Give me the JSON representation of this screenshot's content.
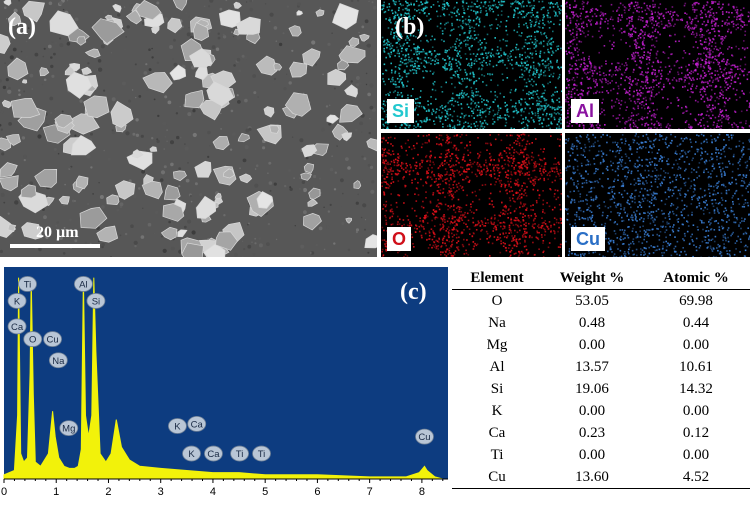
{
  "panels": {
    "a_label": "(a)",
    "b_label": "(b)",
    "c_label": "(c)",
    "scale_bar": "20 µm"
  },
  "maps": [
    {
      "element": "Si",
      "color": "#22c8cf"
    },
    {
      "element": "Al",
      "color": "#c21fcf"
    },
    {
      "element": "O",
      "color": "#e0101a"
    },
    {
      "element": "Cu",
      "color": "#3a7fd6"
    }
  ],
  "chart_data": {
    "type": "line",
    "title": "",
    "xlabel": "",
    "ylabel": "",
    "xlim": [
      0,
      8.5
    ],
    "x_ticks": [
      "0",
      "1",
      "2",
      "3",
      "4",
      "5",
      "6",
      "7",
      "8"
    ],
    "background": "#0d3c80",
    "line_color": "#f2f20a",
    "series": [
      {
        "x": [
          0.0,
          0.2,
          0.26,
          0.28,
          0.32,
          0.38,
          0.45,
          0.5,
          0.52,
          0.56,
          0.6,
          0.7,
          0.85,
          0.93,
          0.98,
          1.05,
          1.15,
          1.25,
          1.35,
          1.42,
          1.48,
          1.52,
          1.56,
          1.62,
          1.68,
          1.72,
          1.76,
          1.84,
          1.95,
          2.05,
          2.15,
          2.25,
          2.4,
          2.6,
          3.0,
          3.5,
          4.0,
          4.5,
          5.0,
          6.0,
          7.0,
          7.7,
          7.95,
          8.05,
          8.1,
          8.15,
          8.25,
          8.4
        ],
        "y": [
          2,
          4,
          30,
          95,
          12,
          8,
          10,
          50,
          95,
          40,
          8,
          6,
          12,
          32,
          20,
          10,
          6,
          5,
          5,
          6,
          14,
          95,
          30,
          20,
          30,
          95,
          60,
          12,
          8,
          12,
          28,
          15,
          9,
          6,
          5,
          4,
          3,
          3,
          2,
          2,
          1,
          1,
          3,
          6,
          4,
          3,
          1,
          0
        ]
      }
    ],
    "peak_labels": [
      {
        "text": "Ti",
        "x": 0.45,
        "y": 92
      },
      {
        "text": "K",
        "x": 0.25,
        "y": 84
      },
      {
        "text": "Ca",
        "x": 0.25,
        "y": 72
      },
      {
        "text": "O",
        "x": 0.55,
        "y": 66
      },
      {
        "text": "Cu",
        "x": 0.93,
        "y": 66
      },
      {
        "text": "Na",
        "x": 1.04,
        "y": 56
      },
      {
        "text": "Al",
        "x": 1.52,
        "y": 92
      },
      {
        "text": "Si",
        "x": 1.76,
        "y": 84
      },
      {
        "text": "Mg",
        "x": 1.24,
        "y": 24
      },
      {
        "text": "K",
        "x": 3.32,
        "y": 25
      },
      {
        "text": "Ca",
        "x": 3.69,
        "y": 26
      },
      {
        "text": "K",
        "x": 3.59,
        "y": 12
      },
      {
        "text": "Ca",
        "x": 4.01,
        "y": 12
      },
      {
        "text": "Ti",
        "x": 4.51,
        "y": 12
      },
      {
        "text": "Ti",
        "x": 4.93,
        "y": 12
      },
      {
        "text": "Cu",
        "x": 8.05,
        "y": 20
      }
    ]
  },
  "composition_table": {
    "headers": [
      "Element",
      "Weight %",
      "Atomic %"
    ],
    "rows": [
      [
        "O",
        "53.05",
        "69.98"
      ],
      [
        "Na",
        "0.48",
        "0.44"
      ],
      [
        "Mg",
        "0.00",
        "0.00"
      ],
      [
        "Al",
        "13.57",
        "10.61"
      ],
      [
        "Si",
        "19.06",
        "14.32"
      ],
      [
        "K",
        "0.00",
        "0.00"
      ],
      [
        "Ca",
        "0.23",
        "0.12"
      ],
      [
        "Ti",
        "0.00",
        "0.00"
      ],
      [
        "Cu",
        "13.60",
        "4.52"
      ]
    ]
  }
}
